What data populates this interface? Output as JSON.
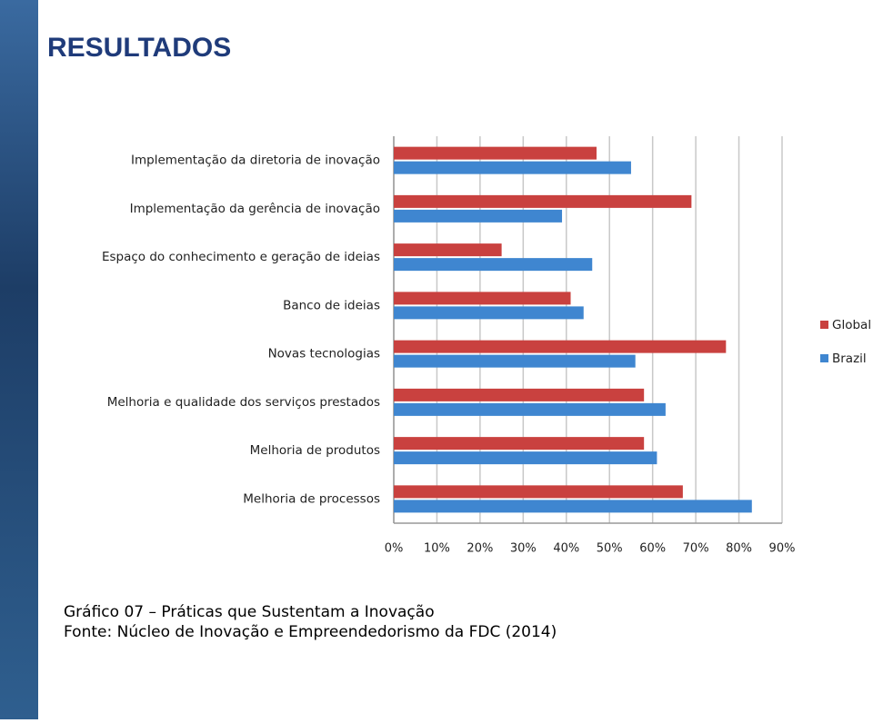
{
  "slide": {
    "title": "RESULTADOS",
    "caption": [
      "Gráfico 07 – Práticas que Sustentam a Inovação",
      "Fonte: Núcleo de Inovação e Empreendedorismo da FDC (2014)"
    ]
  },
  "chart_data": {
    "type": "bar",
    "orientation": "horizontal",
    "grid": true,
    "legend": "right",
    "categories": [
      "Implementação da diretoria de inovação",
      "Implementação da gerência de inovação",
      "Espaço do conhecimento e geração de ideias",
      "Banco de ideias",
      "Novas tecnologias",
      "Melhoria e qualidade dos serviços prestados",
      "Melhoria de produtos",
      "Melhoria de processos"
    ],
    "series": [
      {
        "name": "Global",
        "color": "#c9413f",
        "values": [
          47,
          69,
          25,
          41,
          77,
          58,
          58,
          67
        ]
      },
      {
        "name": "Brazil",
        "color": "#3f86d0",
        "values": [
          55,
          39,
          46,
          44,
          56,
          63,
          61,
          83
        ]
      }
    ],
    "xlim": [
      0,
      90
    ],
    "xticks": [
      {
        "value": 0,
        "label": "0%"
      },
      {
        "value": 10,
        "label": "10%"
      },
      {
        "value": 20,
        "label": "20%"
      },
      {
        "value": 30,
        "label": "30%"
      },
      {
        "value": 40,
        "label": "40%"
      },
      {
        "value": 50,
        "label": "50%"
      },
      {
        "value": 60,
        "label": "60%"
      },
      {
        "value": 70,
        "label": "70%"
      },
      {
        "value": 80,
        "label": "80%"
      },
      {
        "value": 90,
        "label": "90%"
      }
    ]
  }
}
